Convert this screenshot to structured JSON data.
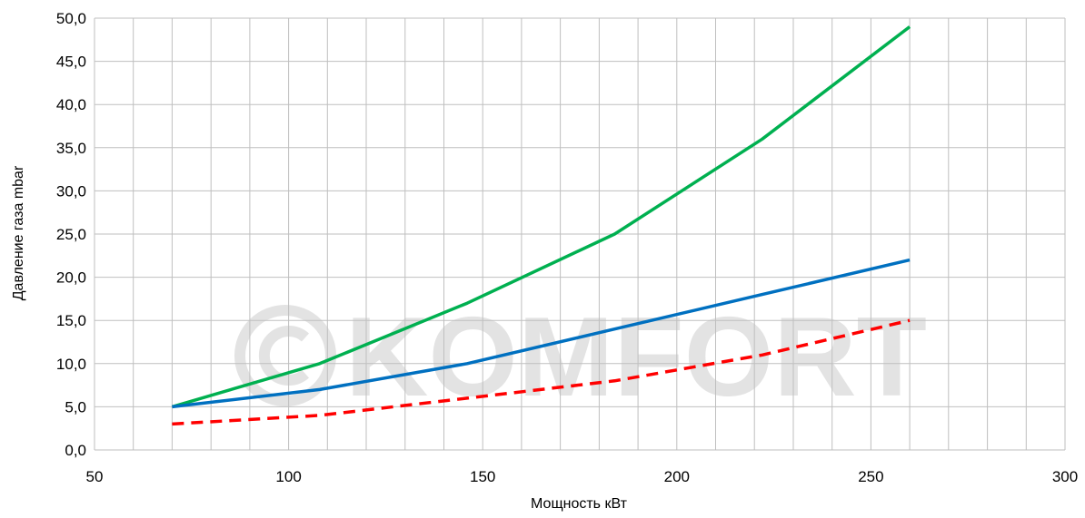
{
  "chart_data": {
    "type": "line",
    "title": "",
    "xlabel": "Мощность кВт",
    "ylabel": "Давление газа mbar",
    "xlim": [
      50,
      300
    ],
    "ylim": [
      0,
      50
    ],
    "x_major_ticks": [
      50,
      100,
      150,
      200,
      250,
      300
    ],
    "x_minor_step": 10,
    "y_ticks": [
      "0,0",
      "5,0",
      "10,0",
      "15,0",
      "20,0",
      "25,0",
      "30,0",
      "35,0",
      "40,0",
      "45,0",
      "50,0"
    ],
    "y_tick_values": [
      0,
      5,
      10,
      15,
      20,
      25,
      30,
      35,
      40,
      45,
      50
    ],
    "grid": true,
    "legend": "none",
    "watermark": "KOMFORT",
    "series": [
      {
        "color": "#00b050",
        "style": "solid",
        "x": [
          70,
          108,
          146,
          184,
          222,
          260
        ],
        "y": [
          5,
          10,
          17,
          25,
          36,
          49
        ]
      },
      {
        "color": "#0070c0",
        "style": "solid",
        "x": [
          70,
          108,
          146,
          184,
          222,
          260
        ],
        "y": [
          5,
          7,
          10,
          14,
          18,
          22
        ]
      },
      {
        "color": "#ff0000",
        "style": "dashed",
        "x": [
          70,
          108,
          146,
          184,
          222,
          260
        ],
        "y": [
          3,
          4,
          6,
          8,
          11,
          15
        ]
      }
    ]
  }
}
